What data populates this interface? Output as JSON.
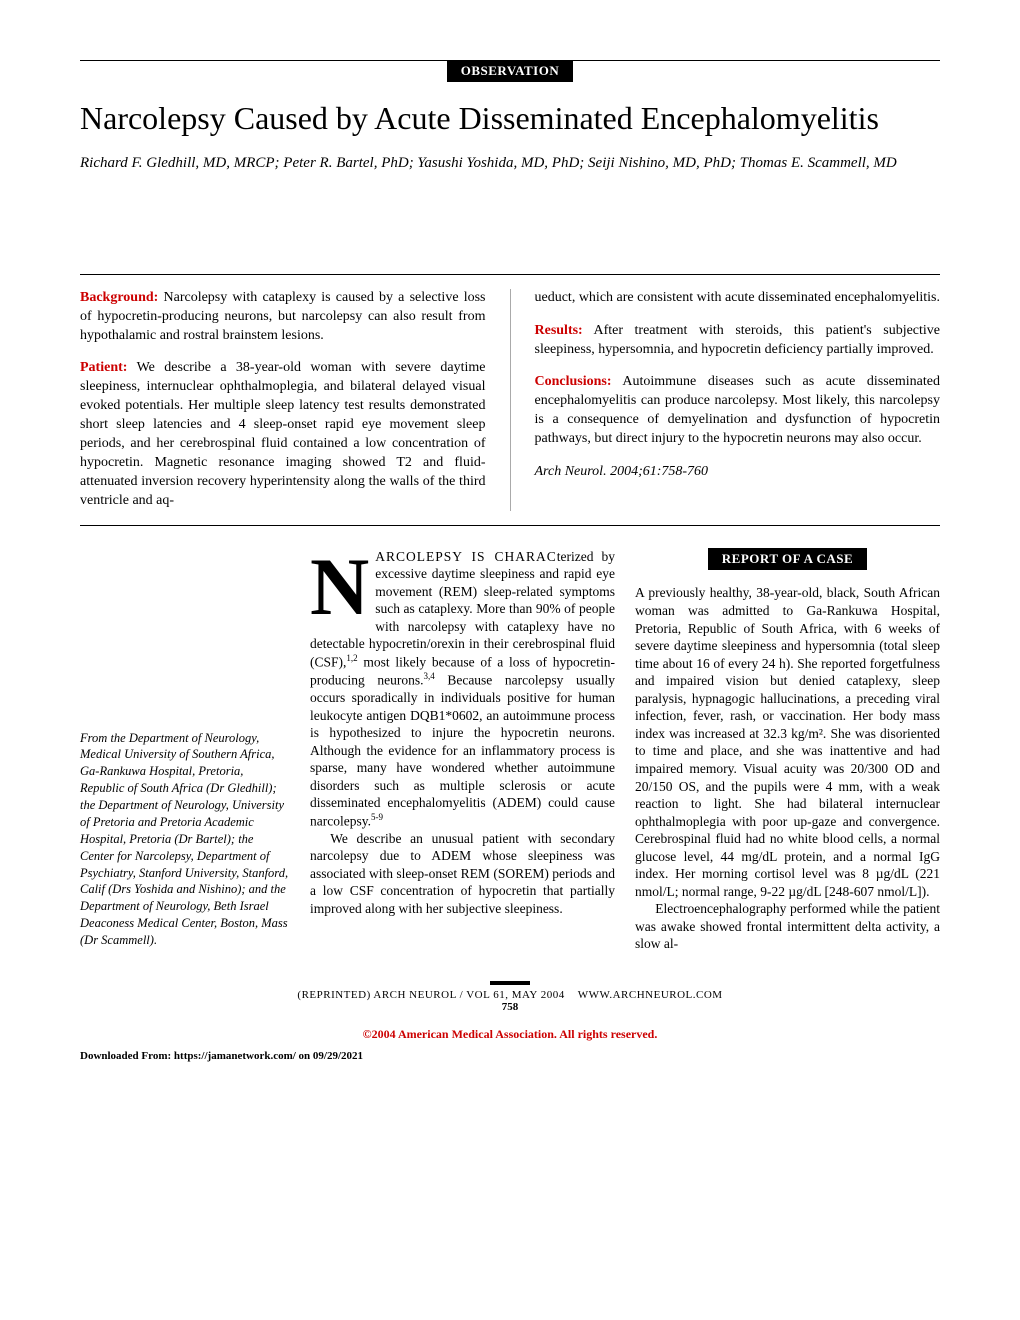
{
  "section_label": "OBSERVATION",
  "title": "Narcolepsy Caused by Acute Disseminated Encephalomyelitis",
  "authors": "Richard F. Gledhill, MD, MRCP; Peter R. Bartel, PhD; Yasushi Yoshida, MD, PhD; Seiji Nishino, MD, PhD; Thomas E. Scammell, MD",
  "abstract": {
    "left": [
      {
        "head": "Background:",
        "text": " Narcolepsy with cataplexy is caused by a selective loss of hypocretin-producing neurons, but narcolepsy can also result from hypothalamic and rostral brainstem lesions."
      },
      {
        "head": "Patient:",
        "text": " We describe a 38-year-old woman with severe daytime sleepiness, internuclear ophthalmoplegia, and bilateral delayed visual evoked potentials. Her multiple sleep latency test results demonstrated short sleep latencies and 4 sleep-onset rapid eye movement sleep periods, and her cerebrospinal fluid contained a low concentration of hypocretin. Magnetic resonance imaging showed T2 and fluid-attenuated inversion recovery hyperintensity along the walls of the third ventricle and aq-"
      }
    ],
    "right": [
      {
        "head": "",
        "text": "ueduct, which are consistent with acute disseminated encephalomyelitis."
      },
      {
        "head": "Results:",
        "text": " After treatment with steroids, this patient's subjective sleepiness, hypersomnia, and hypocretin deficiency partially improved."
      },
      {
        "head": "Conclusions:",
        "text": " Autoimmune diseases such as acute disseminated encephalomyelitis can produce narcolepsy. Most likely, this narcolepsy is a consequence of demyelination and dysfunction of hypocretin pathways, but direct injury to the hypocretin neurons may also occur."
      },
      {
        "head": "",
        "text": "Arch Neurol. 2004;61:758-760",
        "citation": true
      }
    ]
  },
  "affiliations": "From the Department of Neurology, Medical University of Southern Africa, Ga-Rankuwa Hospital, Pretoria, Republic of South Africa (Dr Gledhill); the Department of Neurology, University of Pretoria and Pretoria Academic Hospital, Pretoria (Dr Bartel); the Center for Narcolepsy, Department of Psychiatry, Stanford University, Stanford, Calif (Drs Yoshida and Nishino); and the Department of Neurology, Beth Israel Deaconess Medical Center, Boston, Mass (Dr Scammell).",
  "body_col1": {
    "dropcap_lead": "ARCOLEPSY IS CHARAC",
    "para1_rest": "terized by excessive daytime sleepiness and rapid eye movement (REM) sleep-related symptoms such as cataplexy. More than 90% of people with narcolepsy with cataplexy have no detectable hypocretin/orexin in their cerebrospinal fluid (CSF),",
    "sup1": "1,2",
    "para1_cont": " most likely because of a loss of hypocretin-producing neurons.",
    "sup2": "3,4",
    "para1_end": " Because narcolepsy usually occurs sporadically in individuals positive for human leukocyte antigen DQB1*0602, an autoimmune process is hypothesized to injure the hypocretin neurons. Although the evidence for an inflammatory process is sparse, many have wondered whether autoimmune disorders such as multiple sclerosis or acute disseminated encephalomyelitis (ADEM) could cause narcolepsy.",
    "sup3": "5-9",
    "para2": "We describe an unusual patient with secondary narcolepsy due to ADEM whose sleepiness was associated with sleep-onset REM (SOREM) periods and a low CSF concentration of hypocretin that partially improved along with her subjective sleepiness."
  },
  "case_label": "REPORT OF A CASE",
  "body_col2": {
    "para1": "A previously healthy, 38-year-old, black, South African woman was admitted to Ga-Rankuwa Hospital, Pretoria, Republic of South Africa, with 6 weeks of severe daytime sleepiness and hypersomnia (total sleep time about 16 of every 24 h). She reported forgetfulness and impaired vision but denied cataplexy, sleep paralysis, hypnagogic hallucinations, a preceding viral infection, fever, rash, or vaccination. Her body mass index was increased at 32.3 kg/m². She was disoriented to time and place, and she was inattentive and had impaired memory. Visual acuity was 20/300 OD and 20/150 OS, and the pupils were 4 mm, with a weak reaction to light. She had bilateral internuclear ophthalmoplegia with poor up-gaze and convergence. Cerebrospinal fluid had no white blood cells, a normal glucose level, 44 mg/dL protein, and a normal IgG index. Her morning cortisol level was 8 µg/dL (221 nmol/L; normal range, 9-22 µg/dL [248-607 nmol/L]).",
    "para2": "Electroencephalography performed while the patient was awake showed frontal intermittent delta activity, a slow al-"
  },
  "footer": {
    "line1": "(REPRINTED) ARCH NEUROL / VOL 61, MAY 2004",
    "url": "WWW.ARCHNEUROL.COM",
    "page": "758"
  },
  "copyright": "©2004 American Medical Association. All rights reserved.",
  "download": "Downloaded From: https://jamanetwork.com/ on 09/29/2021"
}
